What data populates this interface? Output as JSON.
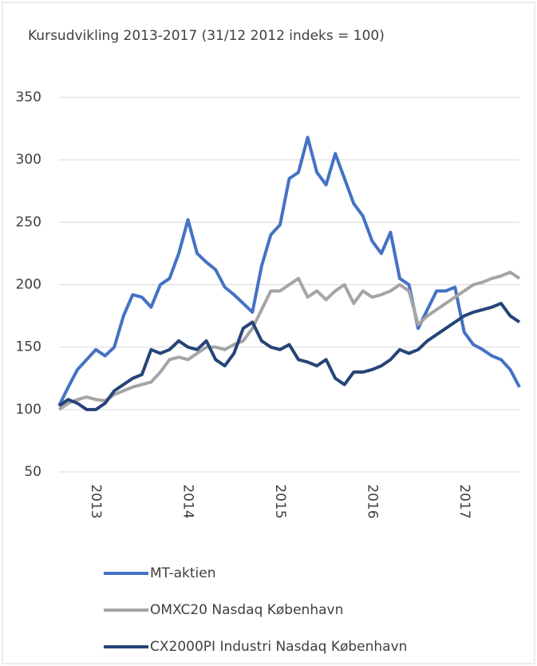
{
  "chart_data": {
    "type": "line",
    "title": "Kursudvikling 2013-2017 (31/12 2012 indeks = 100)",
    "x": [
      2013.1,
      2013.2,
      2013.3,
      2013.4,
      2013.5,
      2013.6,
      2013.7,
      2013.8,
      2013.9,
      2014.0,
      2014.1,
      2014.2,
      2014.3,
      2014.4,
      2014.5,
      2014.6,
      2014.7,
      2014.8,
      2014.9,
      2015.0,
      2015.1,
      2015.2,
      2015.3,
      2015.4,
      2015.5,
      2015.6,
      2015.7,
      2015.8,
      2015.9,
      2016.0,
      2016.1,
      2016.2,
      2016.3,
      2016.4,
      2016.5,
      2016.6,
      2016.7,
      2016.8,
      2016.9,
      2017.0,
      2017.1,
      2017.2,
      2017.3,
      2017.4,
      2017.5,
      2017.6,
      2017.7,
      2017.8,
      2017.9,
      2018.0,
      2018.1
    ],
    "series": [
      {
        "name": "MT-aktien",
        "color": "#4472c4",
        "values": [
          103,
          118,
          132,
          140,
          148,
          143,
          150,
          175,
          192,
          190,
          182,
          200,
          205,
          225,
          252,
          225,
          218,
          212,
          198,
          192,
          185,
          178,
          215,
          240,
          248,
          285,
          290,
          318,
          290,
          280,
          305,
          285,
          265,
          255,
          235,
          225,
          242,
          205,
          200,
          165,
          180,
          195,
          195,
          198,
          162,
          152,
          148,
          143,
          140,
          132,
          118
        ]
      },
      {
        "name": "OMXC20 Nasdaq København",
        "color": "#a5a5a5",
        "values": [
          100,
          105,
          108,
          110,
          108,
          107,
          112,
          115,
          118,
          120,
          122,
          130,
          140,
          142,
          140,
          145,
          150,
          150,
          148,
          152,
          155,
          165,
          180,
          195,
          195,
          200,
          205,
          190,
          195,
          188,
          195,
          200,
          185,
          195,
          190,
          192,
          195,
          200,
          195,
          168,
          175,
          180,
          185,
          190,
          195,
          200,
          202,
          205,
          207,
          210,
          205
        ]
      },
      {
        "name": "CX2000PI Industri Nasdaq København",
        "color": "#264478",
        "values": [
          103,
          108,
          105,
          100,
          100,
          105,
          115,
          120,
          125,
          128,
          148,
          145,
          148,
          155,
          150,
          148,
          155,
          140,
          135,
          145,
          165,
          170,
          155,
          150,
          148,
          152,
          140,
          138,
          135,
          140,
          125,
          120,
          130,
          130,
          132,
          135,
          140,
          148,
          145,
          148,
          155,
          160,
          165,
          170,
          175,
          178,
          180,
          182,
          185,
          175,
          170
        ]
      }
    ],
    "xlim": [
      2013.1,
      2018.1
    ],
    "xticks": [
      {
        "value": 2013.5,
        "label": "2013"
      },
      {
        "value": 2014.5,
        "label": "2014"
      },
      {
        "value": 2015.5,
        "label": "2015"
      },
      {
        "value": 2016.5,
        "label": "2016"
      },
      {
        "value": 2017.5,
        "label": "2017"
      }
    ],
    "ylim": [
      50,
      350
    ],
    "yticks": [
      50,
      100,
      150,
      200,
      250,
      300,
      350
    ],
    "grid": true,
    "legend": "bottom"
  }
}
